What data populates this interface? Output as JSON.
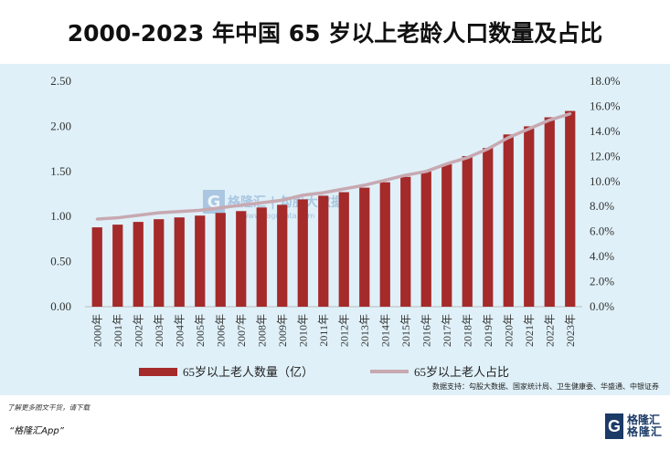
{
  "title": "2000-2023 年中国 65 岁以上老龄人口数量及占比",
  "source": "数据支持：勾股大数据、国家统计局、卫生健康委、华盛通、中银证券",
  "footer": {
    "line1": "了解更多图文干货，请下载",
    "line2": "“格隆汇App”",
    "logo_mark": "G",
    "logo_cn1": "格隆汇",
    "logo_cn2": "格隆汇"
  },
  "watermark": {
    "mark": "G",
    "text": "格隆汇 | 勾股大数据",
    "url": "www.gogudata.com"
  },
  "colors": {
    "bar": "#a52a2a",
    "line": "#c8a9b1",
    "panel": "#dff0f8"
  },
  "chart_data": {
    "type": "bar",
    "categories": [
      "2000年",
      "2001年",
      "2002年",
      "2003年",
      "2004年",
      "2005年",
      "2006年",
      "2007年",
      "2008年",
      "2009年",
      "2010年",
      "2011年",
      "2012年",
      "2013年",
      "2014年",
      "2015年",
      "2016年",
      "2017年",
      "2018年",
      "2019年",
      "2020年",
      "2021年",
      "2022年",
      "2023年"
    ],
    "series": [
      {
        "name": "65岁以上老人数量（亿）",
        "type": "bar",
        "axis": "left",
        "values": [
          0.88,
          0.91,
          0.94,
          0.97,
          0.99,
          1.01,
          1.04,
          1.06,
          1.1,
          1.13,
          1.19,
          1.23,
          1.27,
          1.32,
          1.38,
          1.44,
          1.5,
          1.58,
          1.67,
          1.76,
          1.91,
          2.0,
          2.1,
          2.17
        ]
      },
      {
        "name": "65岁以上老人占比",
        "type": "line",
        "axis": "right",
        "values": [
          7.0,
          7.1,
          7.3,
          7.5,
          7.6,
          7.7,
          7.9,
          8.1,
          8.3,
          8.5,
          8.9,
          9.1,
          9.4,
          9.7,
          10.1,
          10.5,
          10.8,
          11.4,
          11.9,
          12.6,
          13.5,
          14.2,
          14.9,
          15.4
        ]
      }
    ],
    "y_left": {
      "min": 0,
      "max": 2.5,
      "ticks": [
        "0.00",
        "0.50",
        "1.00",
        "1.50",
        "2.00",
        "2.50"
      ]
    },
    "y_right": {
      "min": 0,
      "max": 18,
      "ticks": [
        "0.0%",
        "2.0%",
        "4.0%",
        "6.0%",
        "8.0%",
        "10.0%",
        "12.0%",
        "14.0%",
        "16.0%",
        "18.0%"
      ]
    },
    "grid": false,
    "legend": "bottom"
  }
}
